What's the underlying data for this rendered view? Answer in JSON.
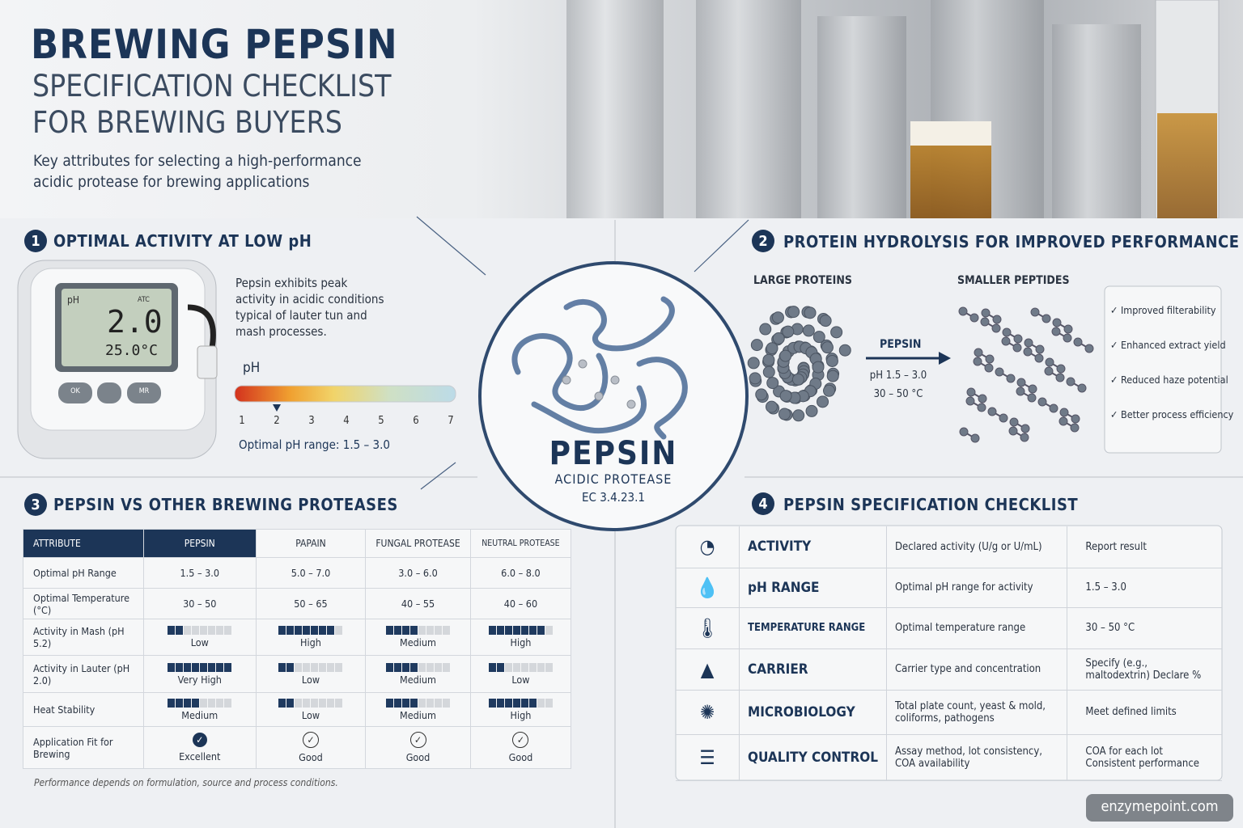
{
  "header": {
    "title": "BREWING PEPSIN",
    "subtitle_lines": [
      "SPECIFICATION CHECKLIST",
      "FOR BREWING BUYERS"
    ],
    "description_lines": [
      "Key attributes for selecting a high-performance",
      "acidic protease for brewing applications"
    ]
  },
  "center": {
    "name": "PEPSIN",
    "class": "ACIDIC PROTEASE",
    "ec": "EC 3.4.23.1"
  },
  "section1": {
    "number": 1,
    "title": "OPTIMAL ACTIVITY AT LOW pH",
    "meter": {
      "unit": "pH",
      "atc": "ATC",
      "reading": "2.0",
      "temp": "25.0°C",
      "buttons": [
        "OK",
        "MR"
      ]
    },
    "text_lines": [
      "Pepsin exhibits peak",
      "activity in acidic conditions",
      "typical of lauter tun and",
      "mash processes."
    ],
    "scale": {
      "label": "pH",
      "ticks": [
        1,
        2,
        3,
        4,
        5,
        6,
        7
      ],
      "marker": 2
    },
    "optimal": "Optimal pH range: 1.5 – 3.0"
  },
  "section2": {
    "number": 2,
    "title": "PROTEIN HYDROLYSIS FOR IMPROVED PERFORMANCE",
    "left_label": "LARGE PROTEINS",
    "right_label": "SMALLER PEPTIDES",
    "enzyme": "PEPSIN",
    "conditions": [
      "pH 1.5 – 3.0",
      "30 – 50 °C"
    ],
    "benefits": [
      "Improved filterability",
      "Enhanced extract yield",
      "Reduced haze potential",
      "Better process efficiency"
    ]
  },
  "section3": {
    "number": 3,
    "title": "PEPSIN VS OTHER BREWING PROTEASES",
    "columns": [
      "ATTRIBUTE",
      "PEPSIN",
      "PAPAIN",
      "FUNGAL PROTEASE",
      "NEUTRAL PROTEASE"
    ],
    "rows": [
      {
        "label": "Optimal pH Range",
        "cells": [
          "1.5 – 3.0",
          "5.0 – 7.0",
          "3.0 – 6.0",
          "6.0 – 8.0"
        ]
      },
      {
        "label": "Optimal Temperature (°C)",
        "cells": [
          "30 – 50",
          "50 – 65",
          "40 – 55",
          "40 – 60"
        ]
      },
      {
        "label": "Activity in Mash (pH 5.2)",
        "ratings": [
          {
            "text": "Low",
            "filled": 2
          },
          {
            "text": "High",
            "filled": 7
          },
          {
            "text": "Medium",
            "filled": 4
          },
          {
            "text": "High",
            "filled": 7
          }
        ]
      },
      {
        "label": "Activity in Lauter (pH 2.0)",
        "ratings": [
          {
            "text": "Very High",
            "filled": 8
          },
          {
            "text": "Low",
            "filled": 2
          },
          {
            "text": "Medium",
            "filled": 4
          },
          {
            "text": "Low",
            "filled": 2
          }
        ]
      },
      {
        "label": "Heat Stability",
        "ratings": [
          {
            "text": "Medium",
            "filled": 4
          },
          {
            "text": "Low",
            "filled": 2
          },
          {
            "text": "Medium",
            "filled": 4
          },
          {
            "text": "High",
            "filled": 6
          }
        ]
      },
      {
        "label": "Application Fit for Brewing",
        "fits": [
          "Excellent",
          "Good",
          "Good",
          "Good"
        ]
      }
    ],
    "footnote": "Performance depends on formulation, source and process conditions."
  },
  "section4": {
    "number": 4,
    "title": "PEPSIN SPECIFICATION CHECKLIST",
    "rows": [
      {
        "name": "ACTIVITY",
        "description": "Declared activity (U/g or U/mL)",
        "requirement": "Report result"
      },
      {
        "name": "pH RANGE",
        "description": "Optimal pH range for activity",
        "requirement": "1.5 – 3.0"
      },
      {
        "name": "TEMPERATURE RANGE",
        "description": "Optimal temperature range",
        "requirement": "30 – 50 °C"
      },
      {
        "name": "CARRIER",
        "description": "Carrier type and concentration",
        "requirement": "Specify (e.g., maltodextrin) Declare %"
      },
      {
        "name": "MICROBIOLOGY",
        "description": "Total plate count, yeast & mold, coliforms, pathogens",
        "requirement": "Meet defined limits"
      },
      {
        "name": "QUALITY CONTROL",
        "description": "Assay method, lot consistency, COA availability",
        "requirement": "COA for each lot Consistent performance"
      }
    ]
  },
  "footer": "enzymepoint.com"
}
